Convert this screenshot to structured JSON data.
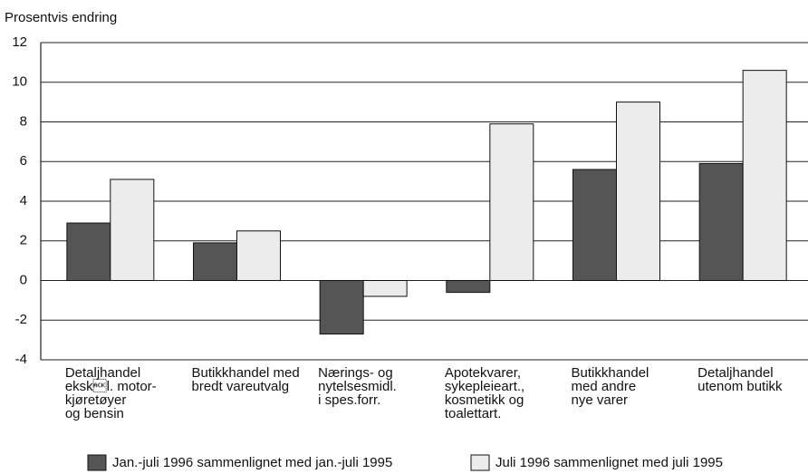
{
  "chart_data": {
    "type": "bar",
    "y_label": "Prosentvis endring",
    "categories": [
      "Detaljhandel\neksk\u0006l. motor-\nkjøretøyer\nog bensin",
      "Butikkhandel med\nbredt vareutvalg",
      "Nærings- og\nnytelsesmidl.\ni spes.forr.",
      "Apotekvarer,\nsykepleieart.,\nkosmetikk og\ntoalettart.",
      "Butikkhandel\nmed andre\nnye varer",
      "Detaljhandel\nutenom butikk"
    ],
    "series": [
      {
        "name": "Jan.-juli 1996 sammenlignet med jan.-juli 1995",
        "color": "#555555",
        "values": [
          2.9,
          1.9,
          -2.7,
          -0.6,
          5.6,
          5.9
        ]
      },
      {
        "name": "Juli 1996 sammenlignet med juli 1995",
        "color": "#ececec",
        "values": [
          5.1,
          2.5,
          -0.8,
          7.9,
          9.0,
          10.6
        ]
      }
    ],
    "ylim": [
      -4,
      12
    ],
    "yticks": [
      -4,
      -2,
      0,
      2,
      4,
      6,
      8,
      10,
      12
    ],
    "grid": true
  }
}
